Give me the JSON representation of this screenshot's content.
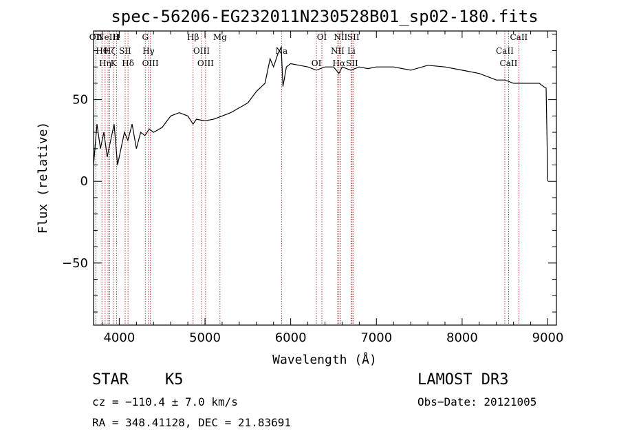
{
  "chart_data": {
    "type": "line",
    "title": "spec-56206-EG232011N230528B01_sp02-180.fits",
    "xlabel": "Wavelength (Å)",
    "ylabel": "Flux (relative)",
    "xlim": [
      3700,
      9100
    ],
    "ylim": [
      -88,
      92
    ],
    "xticks": [
      4000,
      5000,
      6000,
      7000,
      8000,
      9000
    ],
    "xtick_labels": [
      "4000",
      "5000",
      "6000",
      "7000",
      "8000",
      "9000"
    ],
    "yticks": [
      -50,
      0,
      50
    ],
    "ytick_labels": [
      "−50",
      "0",
      "50"
    ],
    "series": [
      {
        "name": "spectrum",
        "x": [
          3700,
          3740,
          3780,
          3820,
          3860,
          3900,
          3940,
          3980,
          4020,
          4060,
          4100,
          4150,
          4200,
          4250,
          4300,
          4350,
          4400,
          4500,
          4600,
          4700,
          4800,
          4861,
          4900,
          5000,
          5100,
          5200,
          5300,
          5400,
          5500,
          5600,
          5700,
          5760,
          5800,
          5850,
          5890,
          5910,
          5950,
          6000,
          6100,
          6200,
          6300,
          6400,
          6500,
          6563,
          6600,
          6700,
          6800,
          6900,
          7000,
          7200,
          7400,
          7600,
          7800,
          8000,
          8200,
          8400,
          8500,
          8600,
          8700,
          8800,
          8900,
          8950,
          8980,
          9000
        ],
        "y": [
          10,
          35,
          20,
          30,
          15,
          25,
          35,
          10,
          20,
          30,
          25,
          35,
          20,
          30,
          28,
          32,
          30,
          33,
          40,
          42,
          40,
          35,
          38,
          37,
          38,
          40,
          42,
          45,
          48,
          55,
          60,
          75,
          70,
          78,
          82,
          58,
          70,
          72,
          71,
          70,
          68,
          70,
          70,
          66,
          70,
          68,
          70,
          69,
          70,
          70,
          68,
          71,
          70,
          68,
          66,
          62,
          62,
          60,
          60,
          60,
          60,
          58,
          57,
          0
        ]
      }
    ],
    "emission_lines": [
      {
        "wavelength": 3727,
        "label": "OII"
      },
      {
        "wavelength": 3798,
        "label": "Hθ"
      },
      {
        "wavelength": 3835,
        "label": "Hη"
      },
      {
        "wavelength": 3869,
        "label": "NeIII"
      },
      {
        "wavelength": 3889,
        "label": "Hζ"
      },
      {
        "wavelength": 3934,
        "label": "K"
      },
      {
        "wavelength": 3968,
        "label": "H"
      },
      {
        "wavelength": 4069,
        "label": "SII"
      },
      {
        "wavelength": 4102,
        "label": "Hδ"
      },
      {
        "wavelength": 4304,
        "label": "G"
      },
      {
        "wavelength": 4341,
        "label": "Hγ"
      },
      {
        "wavelength": 4363,
        "label": "OIII"
      },
      {
        "wavelength": 4861,
        "label": "Hβ"
      },
      {
        "wavelength": 4959,
        "label": "OIII"
      },
      {
        "wavelength": 5007,
        "label": "OIII"
      },
      {
        "wavelength": 5175,
        "label": "Mg"
      },
      {
        "wavelength": 5893,
        "label": "Na"
      },
      {
        "wavelength": 6300,
        "label": "OI"
      },
      {
        "wavelength": 6364,
        "label": "OI"
      },
      {
        "wavelength": 6548,
        "label": "NII"
      },
      {
        "wavelength": 6563,
        "label": "Hα"
      },
      {
        "wavelength": 6583,
        "label": "NII"
      },
      {
        "wavelength": 6708,
        "label": "Li"
      },
      {
        "wavelength": 6716,
        "label": "SII"
      },
      {
        "wavelength": 6731,
        "label": "SII"
      },
      {
        "wavelength": 8498,
        "label": "CaII"
      },
      {
        "wavelength": 8542,
        "label": "CaII"
      },
      {
        "wavelength": 8662,
        "label": "CaII"
      }
    ]
  },
  "info": {
    "class": "STAR",
    "subclass": "K5",
    "survey": "LAMOST DR3",
    "cz": "cz = −110.4 ± 7.0 km/s",
    "obs_date": "Obs−Date: 20121005",
    "coords": "RA = 348.41128, DEC =  21.83691"
  },
  "colors": {
    "line": "#000000",
    "markers": "#b22222",
    "axes": "#000000"
  }
}
